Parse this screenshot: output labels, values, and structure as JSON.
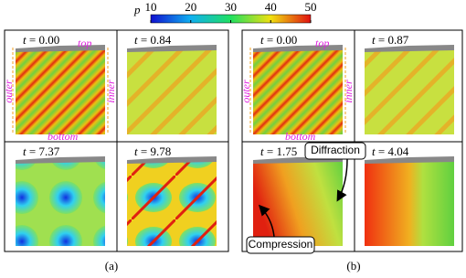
{
  "colorbar": {
    "label": "p",
    "range": [
      10,
      50
    ],
    "ticks": [
      10,
      20,
      30,
      40,
      50
    ]
  },
  "panels": [
    {
      "var": "t",
      "value": "= 0.00"
    },
    {
      "var": "t",
      "value": "= 0.84"
    },
    {
      "var": "t",
      "value": "= 7.37"
    },
    {
      "var": "t",
      "value": "= 9.78"
    },
    {
      "var": "t",
      "value": "= 0.00"
    },
    {
      "var": "t",
      "value": "= 0.87"
    },
    {
      "var": "t",
      "value": "= 1.75"
    },
    {
      "var": "t",
      "value": "= 4.04"
    }
  ],
  "annotations_a": {
    "top": "top",
    "bottom": "bottom",
    "outer": "outer",
    "inner": "inner"
  },
  "annotations_b": {
    "top": "top",
    "bottom": "bottom",
    "outer": "outer",
    "inner": "inner"
  },
  "callouts": {
    "diffraction": "Diffraction",
    "compression": "Compression"
  },
  "captions": [
    "(a)",
    "(b)"
  ]
}
